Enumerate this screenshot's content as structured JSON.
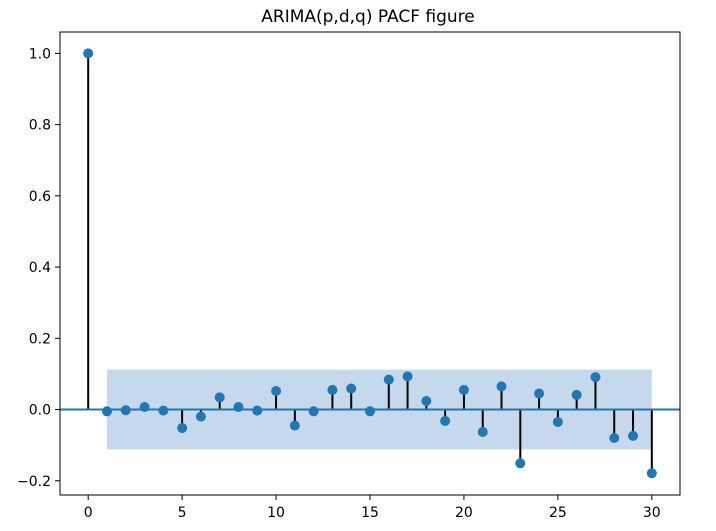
{
  "chart_data": {
    "type": "stem",
    "title": "ARIMA(p,d,q) PACF figure",
    "xlabel": "",
    "ylabel": "",
    "xlim": [
      -1.5,
      31.5
    ],
    "ylim": [
      -0.24,
      1.06
    ],
    "xticks": [
      0,
      5,
      10,
      15,
      20,
      25,
      30
    ],
    "xtick_labels": [
      "0",
      "5",
      "10",
      "15",
      "20",
      "25",
      "30"
    ],
    "yticks": [
      -0.2,
      0.0,
      0.2,
      0.4,
      0.6,
      0.8,
      1.0
    ],
    "ytick_labels": [
      "−0.2",
      "0.0",
      "0.2",
      "0.4",
      "0.6",
      "0.8",
      "1.0"
    ],
    "grid": false,
    "confidence_band": {
      "x_start": 1,
      "x_end": 30,
      "upper": 0.112,
      "lower": -0.112,
      "color": "#c6d9ec"
    },
    "lags": [
      0,
      1,
      2,
      3,
      4,
      5,
      6,
      7,
      8,
      9,
      10,
      11,
      12,
      13,
      14,
      15,
      16,
      17,
      18,
      19,
      20,
      21,
      22,
      23,
      24,
      25,
      26,
      27,
      28,
      29,
      30
    ],
    "values": [
      1.0,
      -0.005,
      -0.002,
      0.007,
      -0.003,
      -0.052,
      -0.02,
      0.034,
      0.007,
      -0.003,
      0.052,
      -0.045,
      -0.005,
      0.055,
      0.059,
      -0.005,
      0.084,
      0.093,
      0.024,
      -0.032,
      0.055,
      -0.063,
      0.065,
      -0.151,
      0.045,
      -0.035,
      0.041,
      0.091,
      -0.08,
      -0.074,
      -0.179
    ],
    "colors": {
      "marker": "#1f77b4",
      "stem": "#000000",
      "baseline": "#1f77b4"
    }
  }
}
